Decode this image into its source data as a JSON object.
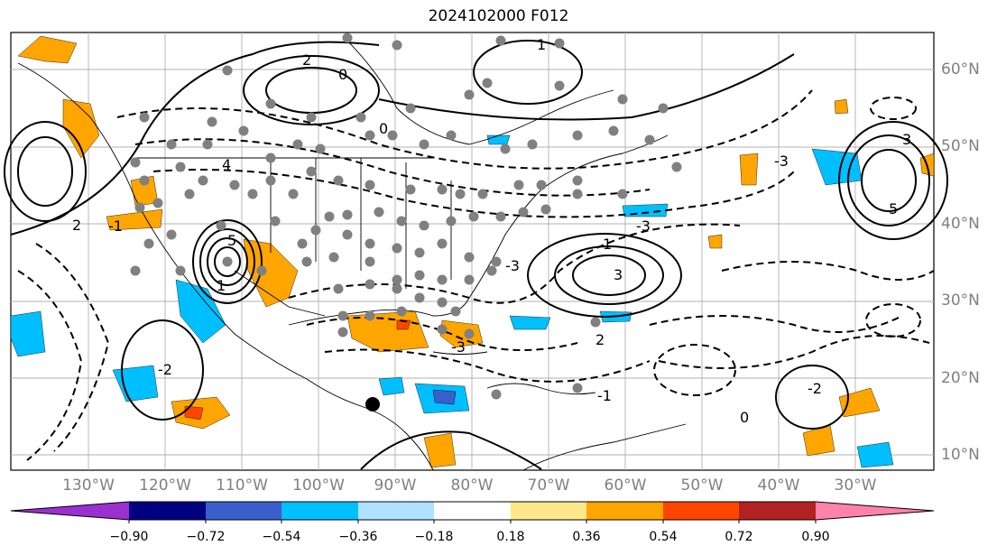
{
  "title": "2024102000 F012",
  "lat_labels": [
    "60°N",
    "50°N",
    "40°N",
    "30°N",
    "20°N",
    "10°N"
  ],
  "lon_labels": [
    "130°W",
    "120°W",
    "110°W",
    "100°W",
    "90°W",
    "80°W",
    "70°W",
    "60°W",
    "50°W",
    "40°W",
    "30°W"
  ],
  "colorbar": {
    "ticks": [
      "−0.90",
      "−0.72",
      "−0.54",
      "−0.36",
      "−0.18",
      "0.18",
      "0.36",
      "0.54",
      "0.72",
      "0.90"
    ],
    "colors": [
      "#9b30d0",
      "#000080",
      "#3a5fcd",
      "#00bfff",
      "#b0e2ff",
      "#ffffff",
      "#ffe88a",
      "#ffa500",
      "#ff4500",
      "#b22222",
      "#ff82ab"
    ]
  },
  "contour_labels": [
    "5",
    "5",
    "4",
    "3",
    "3",
    "2",
    "2",
    "2",
    "1",
    "1",
    "1",
    "0",
    "0",
    "0",
    "-1",
    "-2",
    "-2",
    "-3",
    "-3",
    "-3",
    "-3",
    "-1"
  ],
  "colors": {
    "land_line": "#000000",
    "grid": "#a9a9a9",
    "station": "#808080"
  }
}
